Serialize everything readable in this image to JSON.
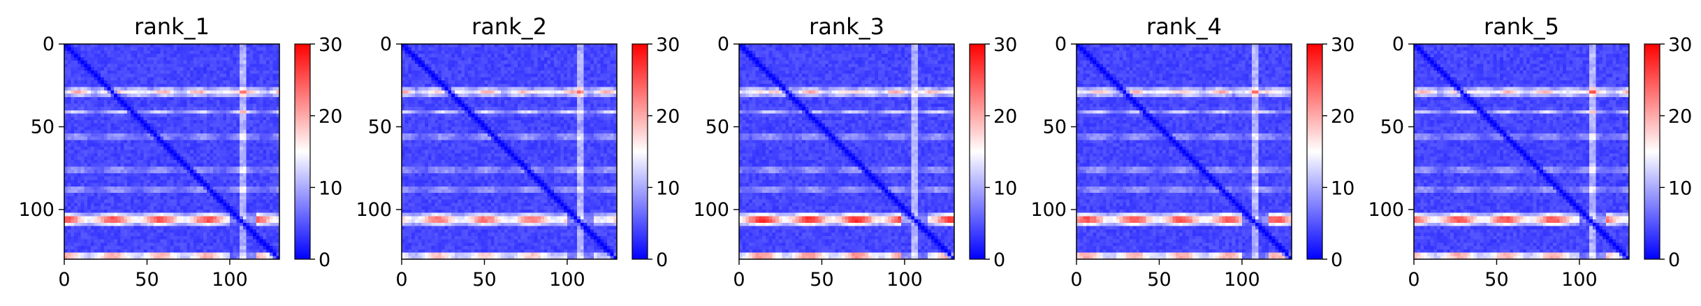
{
  "chart_data": [
    {
      "type": "heatmap",
      "title": "rank_1",
      "xlim": [
        0,
        130
      ],
      "ylim": [
        130,
        0
      ],
      "xticks": [
        "0",
        "50",
        "100"
      ],
      "yticks": [
        "0",
        "50",
        "100"
      ],
      "colorbar": {
        "min": 0,
        "max": 30,
        "ticks": [
          "0",
          "10",
          "20",
          "30"
        ],
        "colormap": "bwr"
      },
      "features": {
        "diagonal": true,
        "high_band_rows": [
          105,
          127
        ],
        "light_band_rows": [
          28,
          40,
          55,
          75,
          87
        ],
        "light_band_col": 107,
        "band_intensity": 1.0
      }
    },
    {
      "type": "heatmap",
      "title": "rank_2",
      "xlim": [
        0,
        130
      ],
      "ylim": [
        130,
        0
      ],
      "xticks": [
        "0",
        "50",
        "100"
      ],
      "yticks": [
        "0",
        "50",
        "100"
      ],
      "colorbar": {
        "min": 0,
        "max": 30,
        "ticks": [
          "0",
          "10",
          "20",
          "30"
        ],
        "colormap": "bwr"
      },
      "features": {
        "diagonal": true,
        "high_band_rows": [
          105,
          127
        ],
        "light_band_rows": [
          28,
          40,
          55,
          75,
          87
        ],
        "light_band_col": 107,
        "band_intensity": 0.9
      }
    },
    {
      "type": "heatmap",
      "title": "rank_3",
      "xlim": [
        0,
        130
      ],
      "ylim": [
        130,
        0
      ],
      "xticks": [
        "0",
        "50",
        "100"
      ],
      "yticks": [
        "0",
        "50",
        "100"
      ],
      "colorbar": {
        "min": 0,
        "max": 30,
        "ticks": [
          "0",
          "10",
          "20",
          "30"
        ],
        "colormap": "bwr"
      },
      "features": {
        "diagonal": true,
        "high_band_rows": [
          105,
          127
        ],
        "light_band_rows": [
          28,
          40,
          55,
          75,
          87
        ],
        "light_band_col": 105,
        "band_intensity": 1.1
      }
    },
    {
      "type": "heatmap",
      "title": "rank_4",
      "xlim": [
        0,
        130
      ],
      "ylim": [
        130,
        0
      ],
      "xticks": [
        "0",
        "50",
        "100"
      ],
      "yticks": [
        "0",
        "50",
        "100"
      ],
      "colorbar": {
        "min": 0,
        "max": 30,
        "ticks": [
          "0",
          "10",
          "20",
          "30"
        ],
        "colormap": "bwr"
      },
      "features": {
        "diagonal": true,
        "high_band_rows": [
          105,
          127
        ],
        "light_band_rows": [
          28,
          40,
          55,
          75,
          87
        ],
        "light_band_col": 107,
        "band_intensity": 1.0
      }
    },
    {
      "type": "heatmap",
      "title": "rank_5",
      "xlim": [
        0,
        130
      ],
      "ylim": [
        130,
        0
      ],
      "xticks": [
        "0",
        "50",
        "100"
      ],
      "yticks": [
        "0",
        "50",
        "100"
      ],
      "colorbar": {
        "min": 0,
        "max": 30,
        "ticks": [
          "0",
          "10",
          "20",
          "30"
        ],
        "colormap": "bwr"
      },
      "features": {
        "diagonal": true,
        "high_band_rows": [
          105,
          127
        ],
        "light_band_rows": [
          28,
          40,
          55,
          75,
          87
        ],
        "light_band_col": 107,
        "band_intensity": 1.0
      }
    }
  ],
  "colors": {
    "low": "#0000ff",
    "mid": "#ffffff",
    "high": "#ff0000"
  }
}
